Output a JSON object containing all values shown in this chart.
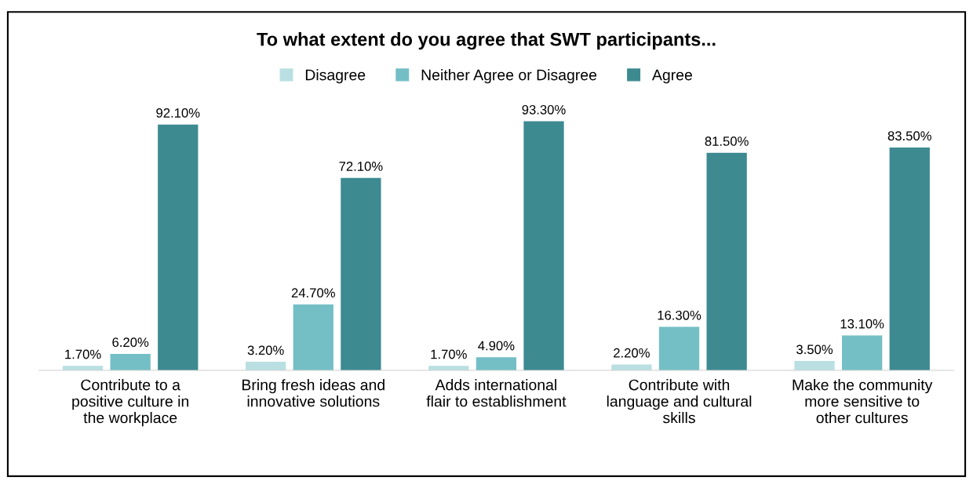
{
  "chart_data": {
    "type": "bar",
    "title": "To what extent do you agree that SWT participants...",
    "categories": [
      "Contribute to a positive culture in the workplace",
      "Bring fresh ideas and innovative solutions",
      "Adds international flair to establishment",
      "Contribute with language and cultural skills",
      "Make the community more sensitive to other cultures"
    ],
    "series": [
      {
        "name": "Disagree",
        "color": "#b9dfe2",
        "values": [
          1.7,
          3.2,
          1.7,
          2.2,
          3.5
        ],
        "value_labels": [
          "1.70%",
          "3.20%",
          "1.70%",
          "2.20%",
          "3.50%"
        ]
      },
      {
        "name": "Neither Agree or Disagree",
        "color": "#74bfc5",
        "values": [
          6.2,
          24.7,
          4.9,
          16.3,
          13.1
        ],
        "value_labels": [
          "6.20%",
          "24.70%",
          "4.90%",
          "16.30%",
          "13.10%"
        ]
      },
      {
        "name": "Agree",
        "color": "#3d8a91",
        "values": [
          92.1,
          72.1,
          93.3,
          81.5,
          83.5
        ],
        "value_labels": [
          "92.10%",
          "72.10%",
          "93.30%",
          "81.50%",
          "83.50%"
        ]
      }
    ],
    "legend": "top",
    "grid": false
  }
}
